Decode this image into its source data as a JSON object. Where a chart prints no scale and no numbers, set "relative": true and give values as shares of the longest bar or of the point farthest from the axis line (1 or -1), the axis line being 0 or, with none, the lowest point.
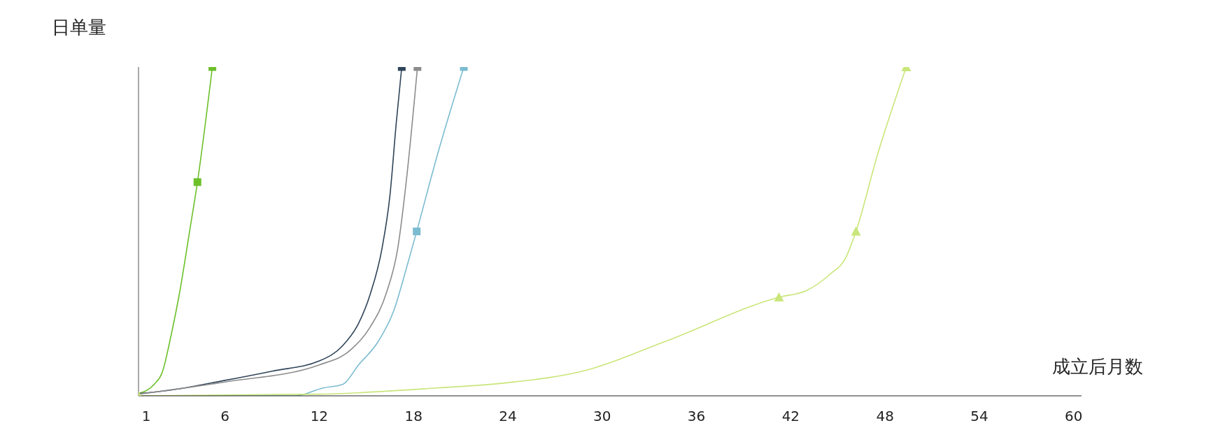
{
  "chart_data": {
    "type": "line",
    "relative": true,
    "ylabel": "日单量",
    "xlabel": "成立后月数",
    "xlim": [
      0.5,
      60.5
    ],
    "xticks": [
      1,
      6,
      12,
      18,
      24,
      30,
      36,
      42,
      48,
      54,
      60
    ],
    "marker": "none",
    "line_style": "solid",
    "grid": false,
    "series": [
      {
        "color": "#6cc02a",
        "x": [
          0.5,
          1.5,
          2,
          2.6,
          3.1,
          3.75,
          4.25,
          5.2
        ],
        "values": [
          0.007,
          0.035,
          0.07,
          0.19,
          0.31,
          0.5,
          0.65,
          1
        ]
      },
      {
        "type": "scatter",
        "marker": "square",
        "color": "#6cc02a",
        "x": [
          4.25,
          5.2
        ],
        "values": [
          0.65,
          1
        ]
      },
      {
        "color": "#2f4459",
        "x": [
          0.5,
          2.5,
          6,
          9,
          12,
          13.5,
          14.5,
          15.25,
          16,
          16.5,
          16.9,
          17.25
        ],
        "values": [
          0.007,
          0.017,
          0.047,
          0.075,
          0.106,
          0.153,
          0.22,
          0.31,
          0.45,
          0.61,
          0.83,
          1
        ]
      },
      {
        "type": "scatter",
        "marker": "square",
        "color": "#2f4459",
        "x": [
          17.25
        ],
        "values": [
          1
        ]
      },
      {
        "color": "#8c8c8c",
        "x": [
          0.5,
          6,
          12,
          14,
          15.25,
          16.25,
          17,
          17.6,
          18.25
        ],
        "values": [
          0.005,
          0.042,
          0.094,
          0.14,
          0.21,
          0.31,
          0.45,
          0.68,
          1
        ]
      },
      {
        "type": "scatter",
        "marker": "square",
        "color": "#8c8c8c",
        "x": [
          18.25
        ],
        "values": [
          1
        ]
      },
      {
        "color": "#7bbcd0",
        "x": [
          0.5,
          10.5,
          12.25,
          13.5,
          14.5,
          15.75,
          16.75,
          17.5,
          18.2,
          19.5,
          21.2
        ],
        "values": [
          0,
          0,
          0.024,
          0.035,
          0.094,
          0.165,
          0.26,
          0.38,
          0.5,
          0.73,
          1
        ]
      },
      {
        "type": "scatter",
        "marker": "square",
        "color": "#7bbcd0",
        "x": [
          18.2,
          21.2
        ],
        "values": [
          0.5,
          1
        ]
      },
      {
        "color": "#c9e67a",
        "x": [
          0.5,
          12,
          19.5,
          24,
          29,
          34,
          41.25,
          43,
          44.5,
          45.5,
          46.15,
          47.5,
          49.35
        ],
        "values": [
          0,
          0.005,
          0.024,
          0.04,
          0.078,
          0.165,
          0.3,
          0.32,
          0.37,
          0.42,
          0.5,
          0.73,
          1
        ]
      },
      {
        "type": "scatter",
        "marker": "triangle",
        "color": "#c9e67a",
        "x": [
          0.5,
          41.25,
          46.15,
          49.35
        ],
        "values": [
          0,
          0.3,
          0.5,
          1
        ]
      }
    ]
  }
}
